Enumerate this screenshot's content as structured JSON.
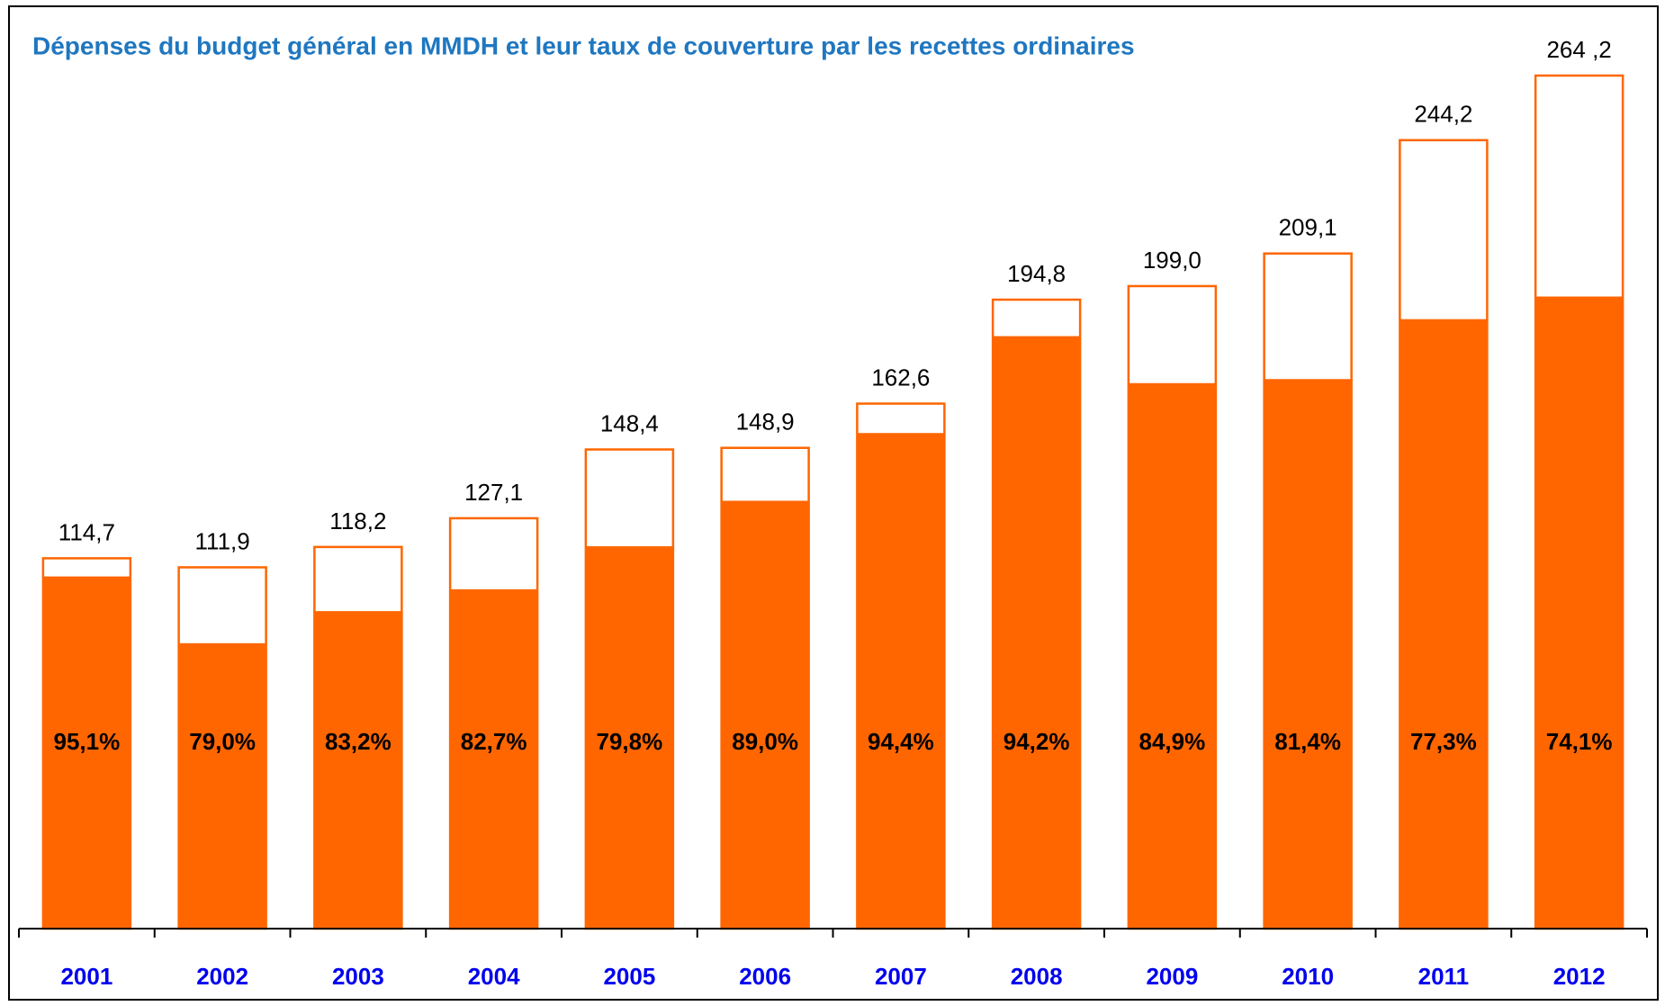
{
  "chart_data": {
    "type": "coverage-bar",
    "title": "Dépenses du budget général en MMDH et leur taux de couverture par les recettes ordinaires",
    "categories": [
      "2001",
      "2002",
      "2003",
      "2004",
      "2005",
      "2006",
      "2007",
      "2008",
      "2009",
      "2010",
      "2011",
      "2012"
    ],
    "values": [
      114.7,
      111.9,
      118.2,
      127.1,
      148.4,
      148.9,
      162.6,
      194.8,
      199.0,
      209.1,
      244.2,
      264.2
    ],
    "value_labels": [
      "114,7",
      "111,9",
      "118,2",
      "127,1",
      "148,4",
      "148,9",
      "162,6",
      "194,8",
      "199,0",
      "209,1",
      "244,2",
      "264 ,2"
    ],
    "coverage": [
      95.1,
      79.0,
      83.2,
      82.7,
      79.8,
      89.0,
      94.4,
      94.2,
      84.9,
      81.4,
      77.3,
      74.1
    ],
    "coverage_labels": [
      "95,1%",
      "79,0%",
      "83,2%",
      "82,7%",
      "79,8%",
      "89,0%",
      "94,4%",
      "94,2%",
      "84,9%",
      "81,4%",
      "77,3%",
      "74,1%"
    ],
    "color": "#ff6600"
  }
}
